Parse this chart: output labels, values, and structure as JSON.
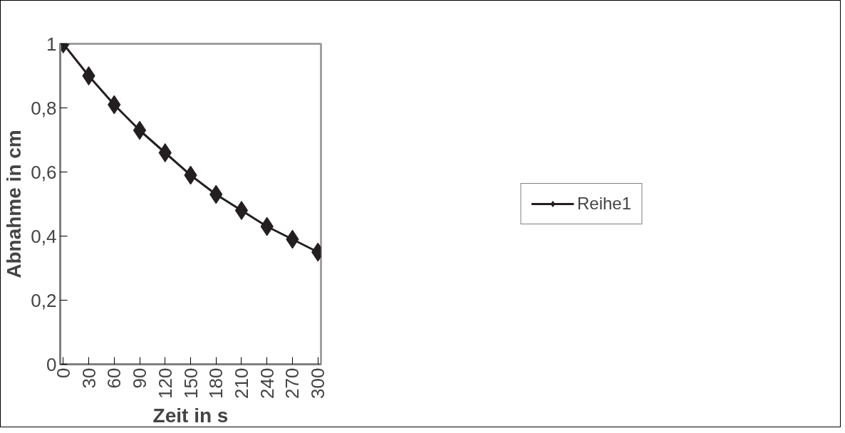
{
  "chart_data": {
    "type": "line",
    "xlabel": "Zeit in s",
    "ylabel": "Abnahme in cm",
    "categories": [
      "0",
      "30",
      "60",
      "90",
      "120",
      "150",
      "180",
      "210",
      "240",
      "270",
      "300"
    ],
    "series": [
      {
        "name": "Reihe1",
        "color": "#231f20",
        "values": [
          1,
          0.9,
          0.81,
          0.73,
          0.66,
          0.59,
          0.53,
          0.48,
          0.43,
          0.39,
          0.35
        ]
      }
    ],
    "ylim": [
      0,
      1
    ],
    "yticks": [
      0,
      {
        "value": 0.2,
        "label": "0,2"
      },
      {
        "value": 0.4,
        "label": "0,4"
      },
      {
        "value": 0.6,
        "label": "0,6"
      },
      {
        "value": 0.8,
        "label": "0,8"
      },
      1
    ],
    "marker": "diamond",
    "line_style": "solid",
    "grid": false,
    "legend": "right"
  }
}
